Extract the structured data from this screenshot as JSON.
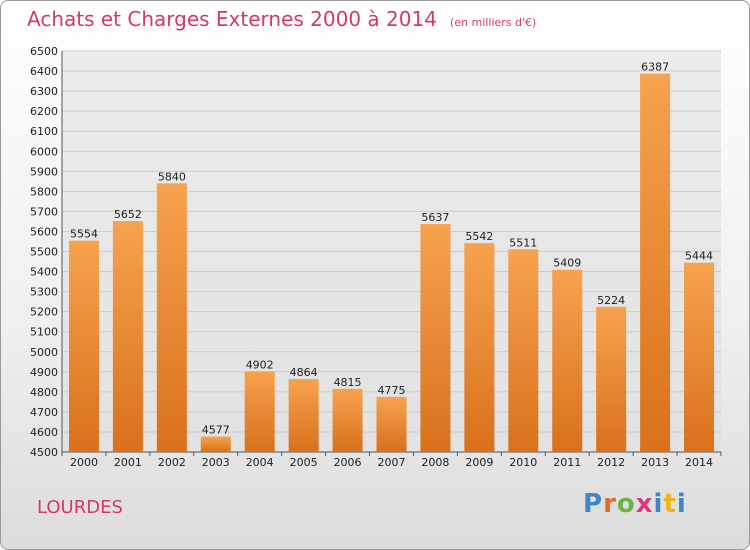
{
  "header": {
    "title": "Achats et Charges Externes 2000 à 2014",
    "subtitle": "(en milliers d'€)"
  },
  "footer": {
    "city": "LOURDES",
    "logo_letters": [
      "P",
      "r",
      "o",
      "x",
      "i",
      "t",
      "i"
    ]
  },
  "colors": {
    "bar_top": "#f7a24e",
    "bar_bottom": "#d9701c",
    "title": "#d6386e",
    "grid": "#cccccc",
    "logo": [
      "#3e86c6",
      "#e46c2a",
      "#6db33f",
      "#e0358a",
      "#3e86c6",
      "#f2b315",
      "#3e86c6"
    ]
  },
  "chart_data": {
    "type": "bar",
    "title": "Achats et Charges Externes 2000 à 2014",
    "categories": [
      "2000",
      "2001",
      "2002",
      "2003",
      "2004",
      "2005",
      "2006",
      "2007",
      "2008",
      "2009",
      "2010",
      "2011",
      "2012",
      "2013",
      "2014"
    ],
    "values": [
      5554,
      5652,
      5840,
      4577,
      4902,
      4864,
      4815,
      4775,
      5637,
      5542,
      5511,
      5409,
      5224,
      6387,
      5444
    ],
    "ylim": [
      4500,
      6500
    ],
    "yticks": [
      4500,
      4600,
      4700,
      4800,
      4900,
      5000,
      5100,
      5200,
      5300,
      5400,
      5500,
      5600,
      5700,
      5800,
      5900,
      6000,
      6100,
      6200,
      6300,
      6400,
      6500
    ],
    "grid": true,
    "xlabel": "",
    "ylabel": ""
  }
}
